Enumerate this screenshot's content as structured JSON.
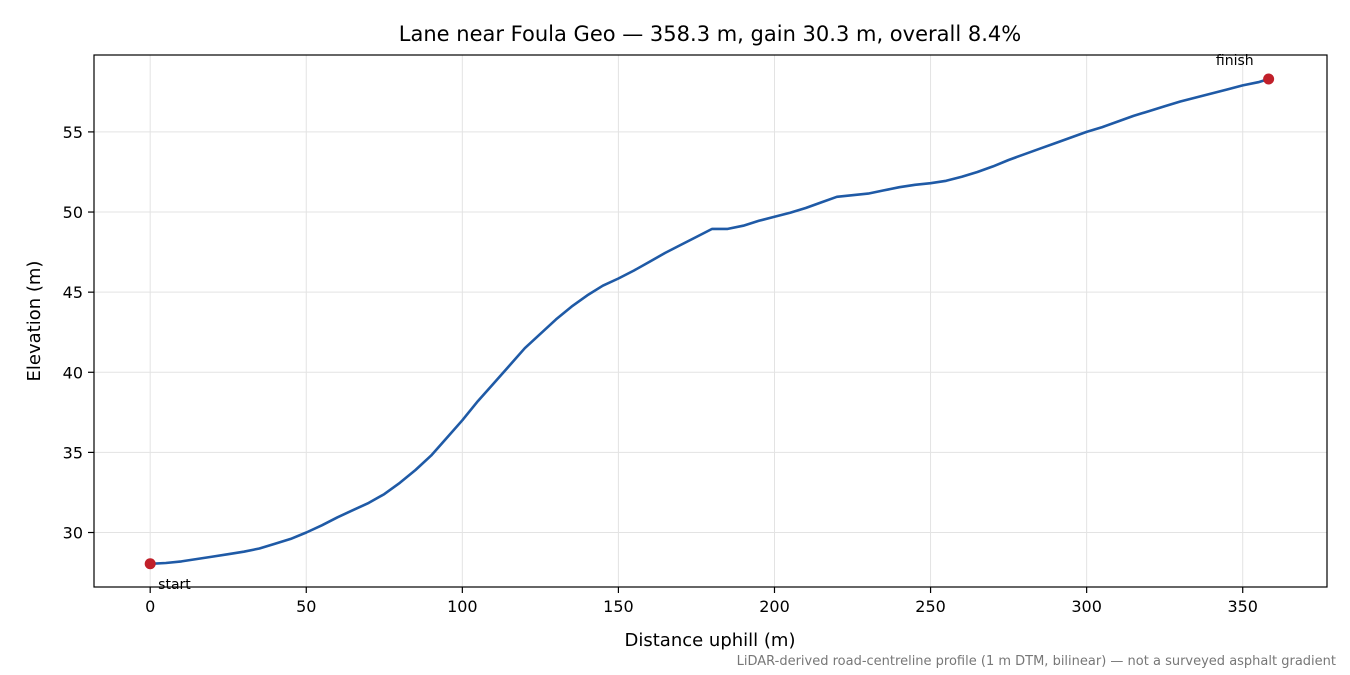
{
  "chart_data": {
    "type": "line",
    "title": "Lane near Foula Geo — 358.3 m, gain 30.3 m, overall 8.4%",
    "xlabel": "Distance uphill (m)",
    "ylabel": "Elevation (m)",
    "footnote": "LiDAR-derived road-centreline profile (1 m DTM, bilinear) — not a surveyed asphalt gradient",
    "xlim": [
      -18,
      377
    ],
    "ylim": [
      26.6,
      59.8
    ],
    "xticks": [
      0,
      50,
      100,
      150,
      200,
      250,
      300,
      350
    ],
    "yticks": [
      30,
      35,
      40,
      45,
      50,
      55
    ],
    "grid": true,
    "line_color": "#1f5aa6",
    "marker_color": "#c0202a",
    "series": [
      {
        "x": [
          0,
          5,
          10,
          15,
          20,
          25,
          30,
          35,
          40,
          45,
          50,
          55,
          60,
          65,
          70,
          75,
          80,
          85,
          90,
          95,
          100,
          105,
          110,
          115,
          120,
          125,
          130,
          135,
          140,
          145,
          150,
          155,
          160,
          165,
          170,
          175,
          180,
          185,
          190,
          195,
          200,
          205,
          210,
          215,
          220,
          225,
          230,
          235,
          240,
          245,
          250,
          255,
          260,
          265,
          270,
          275,
          280,
          285,
          290,
          295,
          300,
          305,
          310,
          315,
          320,
          325,
          330,
          335,
          340,
          345,
          350,
          355,
          358.3
        ],
        "y": [
          28.05,
          28.1,
          28.2,
          28.35,
          28.5,
          28.65,
          28.8,
          29.0,
          29.3,
          29.6,
          30.0,
          30.45,
          30.95,
          31.4,
          31.85,
          32.4,
          33.1,
          33.9,
          34.8,
          35.9,
          37.0,
          38.2,
          39.3,
          40.4,
          41.5,
          42.4,
          43.3,
          44.1,
          44.8,
          45.4,
          45.85,
          46.35,
          46.9,
          47.45,
          47.95,
          48.45,
          48.95,
          48.95,
          49.15,
          49.45,
          49.7,
          49.95,
          50.25,
          50.6,
          50.95,
          51.05,
          51.15,
          51.35,
          51.55,
          51.7,
          51.8,
          51.95,
          52.2,
          52.5,
          52.85,
          53.25,
          53.6,
          53.95,
          54.3,
          54.65,
          55.0,
          55.3,
          55.65,
          56.0,
          56.3,
          56.6,
          56.9,
          57.15,
          57.4,
          57.65,
          57.9,
          58.1,
          58.3
        ]
      }
    ],
    "annotations": [
      {
        "label": "start",
        "x": 0,
        "y": 28.05
      },
      {
        "label": "finish",
        "x": 358.3,
        "y": 58.3
      }
    ]
  }
}
